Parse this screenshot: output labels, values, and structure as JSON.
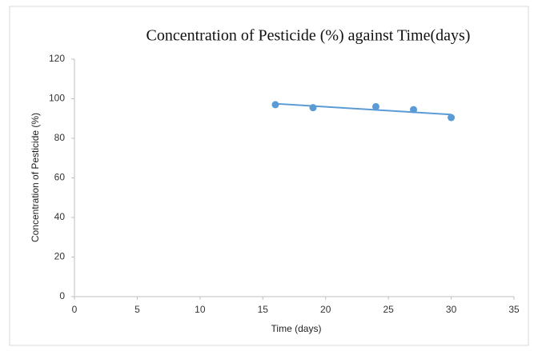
{
  "chart_data": {
    "type": "scatter",
    "title": "Concentration  of  Pesticide (%) against Time(days)",
    "x_label": "Time (days)",
    "y_label": "Concentration of Pesticide (%)",
    "x": [
      16,
      19,
      24,
      27,
      30
    ],
    "values": [
      97,
      95.5,
      96,
      94.5,
      90.5
    ],
    "color": "#5b9bd5",
    "trendline": {
      "x": [
        16,
        30
      ],
      "y": [
        97.5,
        92
      ]
    },
    "xlim": [
      0,
      35
    ],
    "xticks": [
      0,
      5,
      10,
      15,
      20,
      25,
      30,
      35
    ],
    "ylim": [
      0,
      120
    ],
    "yticks": [
      0,
      20,
      40,
      60,
      80,
      100,
      120
    ],
    "grid": false
  }
}
